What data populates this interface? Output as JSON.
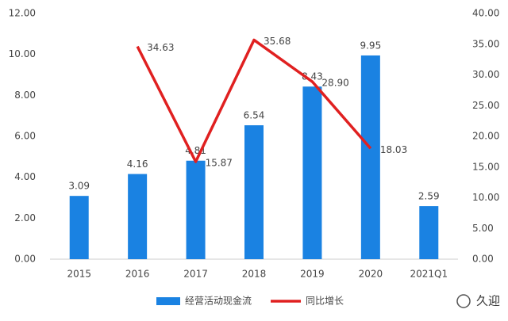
{
  "chart_data": {
    "type": "bar",
    "categories": [
      "2015",
      "2016",
      "2017",
      "2018",
      "2019",
      "2020",
      "2021Q1"
    ],
    "series": [
      {
        "name": "经营活动现金流",
        "type": "bar",
        "color": "#1a82e2",
        "values": [
          3.09,
          4.16,
          4.81,
          6.54,
          8.43,
          9.95,
          2.59
        ]
      },
      {
        "name": "同比增长",
        "type": "line",
        "axis": "y2",
        "color": "#e02020",
        "values": [
          null,
          34.63,
          15.87,
          35.68,
          28.9,
          18.03,
          null
        ],
        "value_labels": [
          null,
          "34.63",
          "15.87",
          "35.68",
          "28.90",
          "18.03",
          null
        ]
      }
    ],
    "ylim": [
      0,
      12
    ],
    "yticks": [
      {
        "value": 0,
        "label": "0.00"
      },
      {
        "value": 2,
        "label": "2.00"
      },
      {
        "value": 4,
        "label": "4.00"
      },
      {
        "value": 6,
        "label": "6.00"
      },
      {
        "value": 8,
        "label": "8.00"
      },
      {
        "value": 10,
        "label": "10.00"
      },
      {
        "value": 12,
        "label": "12.00"
      }
    ],
    "y2lim": [
      0,
      40
    ],
    "y2ticks": [
      {
        "value": 0,
        "label": "0.00"
      },
      {
        "value": 5,
        "label": "5.00"
      },
      {
        "value": 10,
        "label": "10.00"
      },
      {
        "value": 15,
        "label": "15.00"
      },
      {
        "value": 20,
        "label": "20.00"
      },
      {
        "value": 25,
        "label": "25.00"
      },
      {
        "value": 30,
        "label": "30.00"
      },
      {
        "value": 35,
        "label": "35.00"
      },
      {
        "value": 40,
        "label": "40.00"
      }
    ],
    "grid": false,
    "legend": "bottom",
    "watermark": "久迎"
  }
}
